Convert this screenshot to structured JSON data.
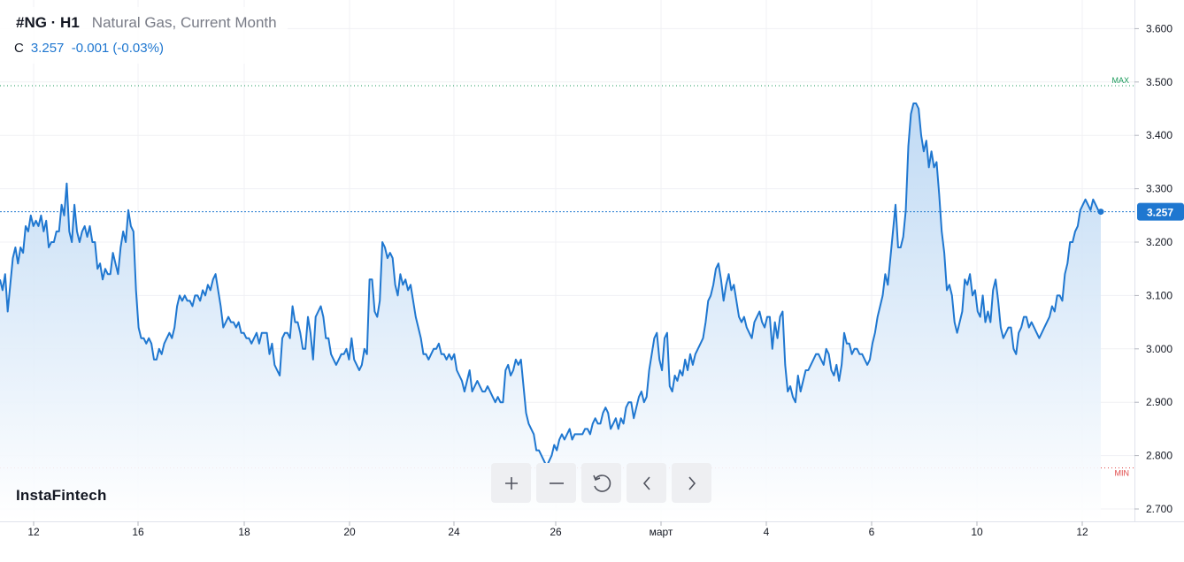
{
  "header": {
    "symbol": "#NG · H1",
    "description": "Natural Gas, Current Month",
    "price_label": "C",
    "price": "3.257",
    "change": "-0.001 (-0.03%)"
  },
  "branding": {
    "logo_text": "InstaFintech"
  },
  "toolbar": {
    "buttons": [
      {
        "name": "zoom-in-button",
        "icon": "plus-icon"
      },
      {
        "name": "zoom-out-button",
        "icon": "minus-icon"
      },
      {
        "name": "reset-button",
        "icon": "reset-icon"
      },
      {
        "name": "scroll-left-button",
        "icon": "chevron-left-icon"
      },
      {
        "name": "scroll-right-button",
        "icon": "chevron-right-icon"
      }
    ]
  },
  "colors": {
    "line": "#1f77d0",
    "area_top": "#b9d6f3",
    "area_bottom": "#ffffff",
    "max_line": "#1a9a5a",
    "min_line": "#e04848",
    "last_price_badge": "#1f77d0",
    "grid": "#f0f1f4"
  },
  "chart_data": {
    "type": "area",
    "title": "",
    "xlabel": "",
    "ylabel": "",
    "ylim": [
      2.68,
      3.64
    ],
    "y_ticks": [
      "3.600",
      "3.500",
      "3.400",
      "3.300",
      "3.200",
      "3.100",
      "3.000",
      "2.900",
      "2.800",
      "2.700"
    ],
    "x_ticks": [
      "12",
      "16",
      "18",
      "20",
      "24",
      "26",
      "март",
      "4",
      "6",
      "10",
      "12"
    ],
    "max_line": {
      "label": "MAX",
      "value": 3.493
    },
    "min_line": {
      "label": "MIN",
      "value": 2.777
    },
    "last_price": {
      "label": "3.257",
      "value": 3.257
    },
    "series": [
      {
        "values": [
          3.13,
          3.11,
          3.14,
          3.07,
          3.12,
          3.17,
          3.19,
          3.16,
          3.19,
          3.18,
          3.23,
          3.22,
          3.25,
          3.23,
          3.24,
          3.23,
          3.25,
          3.22,
          3.24,
          3.19,
          3.2,
          3.2,
          3.22,
          3.22,
          3.27,
          3.25,
          3.31,
          3.22,
          3.2,
          3.27,
          3.22,
          3.2,
          3.22,
          3.23,
          3.21,
          3.23,
          3.2,
          3.2,
          3.15,
          3.16,
          3.13,
          3.15,
          3.14,
          3.14,
          3.18,
          3.16,
          3.14,
          3.19,
          3.22,
          3.2,
          3.26,
          3.23,
          3.22,
          3.11,
          3.04,
          3.02,
          3.02,
          3.01,
          3.02,
          3.01,
          2.98,
          2.98,
          3.0,
          2.99,
          3.01,
          3.02,
          3.03,
          3.02,
          3.04,
          3.08,
          3.1,
          3.09,
          3.1,
          3.09,
          3.09,
          3.08,
          3.1,
          3.1,
          3.09,
          3.11,
          3.1,
          3.12,
          3.11,
          3.13,
          3.14,
          3.11,
          3.08,
          3.04,
          3.05,
          3.06,
          3.05,
          3.05,
          3.04,
          3.05,
          3.03,
          3.03,
          3.02,
          3.02,
          3.01,
          3.02,
          3.03,
          3.01,
          3.03,
          3.03,
          3.03,
          2.99,
          3.01,
          2.97,
          2.96,
          2.95,
          3.02,
          3.03,
          3.03,
          3.02,
          3.08,
          3.05,
          3.05,
          3.03,
          3.0,
          3.0,
          3.06,
          3.03,
          2.98,
          3.06,
          3.07,
          3.08,
          3.06,
          3.02,
          3.02,
          2.99,
          2.98,
          2.97,
          2.98,
          2.99,
          2.99,
          3.0,
          2.98,
          3.02,
          2.98,
          2.97,
          2.96,
          2.97,
          3.0,
          2.99,
          3.13,
          3.13,
          3.07,
          3.06,
          3.09,
          3.2,
          3.19,
          3.17,
          3.18,
          3.17,
          3.12,
          3.1,
          3.14,
          3.12,
          3.13,
          3.11,
          3.12,
          3.09,
          3.06,
          3.04,
          3.02,
          2.99,
          2.99,
          2.98,
          2.99,
          3.0,
          3.0,
          3.01,
          2.99,
          2.99,
          2.98,
          2.99,
          2.98,
          2.99,
          2.96,
          2.95,
          2.94,
          2.92,
          2.94,
          2.96,
          2.92,
          2.93,
          2.94,
          2.93,
          2.92,
          2.92,
          2.93,
          2.92,
          2.91,
          2.9,
          2.91,
          2.9,
          2.9,
          2.96,
          2.97,
          2.95,
          2.96,
          2.98,
          2.97,
          2.98,
          2.93,
          2.88,
          2.86,
          2.85,
          2.84,
          2.81,
          2.81,
          2.8,
          2.79,
          2.78,
          2.79,
          2.8,
          2.82,
          2.81,
          2.83,
          2.84,
          2.83,
          2.84,
          2.85,
          2.83,
          2.84,
          2.84,
          2.84,
          2.84,
          2.85,
          2.85,
          2.84,
          2.86,
          2.87,
          2.86,
          2.86,
          2.88,
          2.89,
          2.88,
          2.85,
          2.86,
          2.87,
          2.85,
          2.87,
          2.86,
          2.89,
          2.9,
          2.9,
          2.87,
          2.89,
          2.91,
          2.92,
          2.9,
          2.91,
          2.96,
          2.99,
          3.02,
          3.03,
          2.98,
          2.96,
          3.02,
          3.03,
          2.93,
          2.92,
          2.95,
          2.94,
          2.96,
          2.95,
          2.98,
          2.96,
          2.99,
          2.97,
          2.99,
          3.0,
          3.01,
          3.02,
          3.05,
          3.09,
          3.1,
          3.12,
          3.15,
          3.16,
          3.13,
          3.09,
          3.12,
          3.14,
          3.11,
          3.12,
          3.09,
          3.06,
          3.05,
          3.06,
          3.04,
          3.03,
          3.02,
          3.05,
          3.06,
          3.07,
          3.05,
          3.04,
          3.06,
          3.06,
          3.0,
          3.05,
          3.02,
          3.06,
          3.07,
          2.97,
          2.92,
          2.93,
          2.91,
          2.9,
          2.95,
          2.92,
          2.94,
          2.96,
          2.96,
          2.97,
          2.98,
          2.99,
          2.99,
          2.98,
          2.97,
          3.0,
          2.99,
          2.96,
          2.95,
          2.97,
          2.94,
          2.97,
          3.03,
          3.01,
          3.01,
          2.99,
          3.0,
          3.0,
          2.99,
          2.99,
          2.98,
          2.97,
          2.98,
          3.01,
          3.03,
          3.06,
          3.08,
          3.1,
          3.14,
          3.12,
          3.17,
          3.22,
          3.27,
          3.19,
          3.19,
          3.21,
          3.26,
          3.38,
          3.44,
          3.46,
          3.46,
          3.45,
          3.4,
          3.37,
          3.39,
          3.34,
          3.37,
          3.34,
          3.35,
          3.29,
          3.22,
          3.18,
          3.11,
          3.12,
          3.1,
          3.05,
          3.03,
          3.05,
          3.07,
          3.13,
          3.12,
          3.14,
          3.1,
          3.11,
          3.07,
          3.06,
          3.1,
          3.05,
          3.07,
          3.05,
          3.11,
          3.13,
          3.09,
          3.04,
          3.02,
          3.03,
          3.04,
          3.04,
          3.0,
          2.99,
          3.03,
          3.04,
          3.06,
          3.06,
          3.04,
          3.05,
          3.04,
          3.03,
          3.02,
          3.03,
          3.04,
          3.05,
          3.06,
          3.08,
          3.07,
          3.1,
          3.1,
          3.09,
          3.14,
          3.16,
          3.2,
          3.2,
          3.22,
          3.23,
          3.26,
          3.27,
          3.28,
          3.27,
          3.26,
          3.28,
          3.27,
          3.26,
          3.257
        ]
      }
    ]
  }
}
